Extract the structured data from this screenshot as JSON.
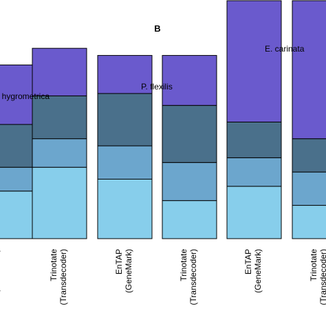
{
  "chart_data": {
    "type": "bar",
    "stacked": true,
    "title": "B",
    "colors": [
      "#87ceeb",
      "#6ca6cd",
      "#4a708b",
      "#6a5acd"
    ],
    "groups": [
      {
        "label": "F. hygrometrica",
        "bars": [
          {
            "label_line1": "EnTAP",
            "label_line2": "(GeneMark)",
            "values": [
              0.2,
              0.1,
              0.18,
              0.25
            ]
          },
          {
            "label_line1": "Trinotate",
            "label_line2": "(Transdecoder)",
            "values": [
              0.3,
              0.12,
              0.18,
              0.2
            ]
          }
        ]
      },
      {
        "label": "P. flexilis",
        "bars": [
          {
            "label_line1": "EnTAP",
            "label_line2": "(GeneMark)",
            "values": [
              0.25,
              0.14,
              0.22,
              0.16
            ]
          },
          {
            "label_line1": "Trinotate",
            "label_line2": "(Transdecoder)",
            "values": [
              0.16,
              0.16,
              0.24,
              0.21
            ]
          }
        ]
      },
      {
        "label": "E. carinata",
        "bars": [
          {
            "label_line1": "EnTAP",
            "label_line2": "(GeneMark)",
            "values": [
              0.22,
              0.12,
              0.15,
              0.51
            ]
          },
          {
            "label_line1": "Trinotate",
            "label_line2": "(Transdecoder)",
            "values": [
              0.14,
              0.14,
              0.14,
              0.58
            ]
          }
        ]
      }
    ]
  }
}
